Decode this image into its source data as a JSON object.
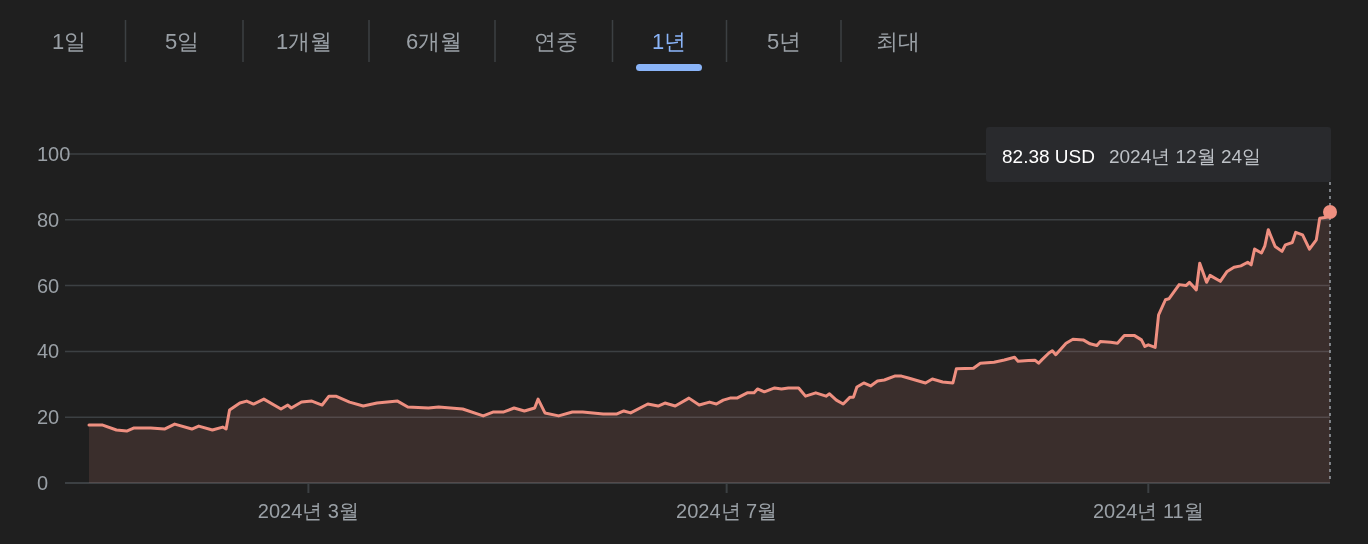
{
  "chart_data": {
    "type": "area",
    "color": "#ee8f80",
    "grid": "y",
    "annotations": [
      "1일",
      "5일",
      "1개월",
      "6개월",
      "연중",
      "1년",
      "5년",
      "최대",
      "82.38 USD",
      "2024년 12월 24일"
    ],
    "xlim": [
      "2023-12-21",
      "2024-12-24"
    ],
    "xticks": [
      {
        "value": "2024-03-01",
        "label": "2024년 3월"
      },
      {
        "value": "2024-07-01",
        "label": "2024년 7월"
      },
      {
        "value": "2024-11-01",
        "label": "2024년 11월"
      }
    ],
    "ylim": [
      0,
      100
    ],
    "yticks": [
      0,
      20,
      40,
      60,
      80,
      100
    ],
    "x": [
      "2023-12-28",
      "2024-01-01",
      "2024-01-05",
      "2024-01-08",
      "2024-01-10",
      "2024-01-15",
      "2024-01-19",
      "2024-01-22",
      "2024-01-27",
      "2024-01-29",
      "2024-02-02",
      "2024-02-05",
      "2024-02-06",
      "2024-02-07",
      "2024-02-10",
      "2024-02-12",
      "2024-02-14",
      "2024-02-17",
      "2024-02-22",
      "2024-02-24",
      "2024-02-25",
      "2024-02-28",
      "2024-03-02",
      "2024-03-05",
      "2024-03-07",
      "2024-03-09",
      "2024-03-13",
      "2024-03-17",
      "2024-03-21",
      "2024-03-27",
      "2024-03-30",
      "2024-04-05",
      "2024-04-08",
      "2024-04-15",
      "2024-04-21",
      "2024-04-24",
      "2024-04-27",
      "2024-04-30",
      "2024-05-03",
      "2024-05-06",
      "2024-05-07",
      "2024-05-09",
      "2024-05-13",
      "2024-05-17",
      "2024-05-20",
      "2024-05-26",
      "2024-05-30",
      "2024-06-01",
      "2024-06-03",
      "2024-06-08",
      "2024-06-11",
      "2024-06-13",
      "2024-06-16",
      "2024-06-20",
      "2024-06-23",
      "2024-06-26",
      "2024-06-28",
      "2024-06-30",
      "2024-07-02",
      "2024-07-04",
      "2024-07-07",
      "2024-07-09",
      "2024-07-10",
      "2024-07-12",
      "2024-07-15",
      "2024-07-17",
      "2024-07-19",
      "2024-07-22",
      "2024-07-24",
      "2024-07-27",
      "2024-07-30",
      "2024-07-31",
      "2024-08-02",
      "2024-08-04",
      "2024-08-06",
      "2024-08-07",
      "2024-08-08",
      "2024-08-10",
      "2024-08-12",
      "2024-08-14",
      "2024-08-16",
      "2024-08-19",
      "2024-08-21",
      "2024-08-23",
      "2024-08-26",
      "2024-08-28",
      "2024-08-30",
      "2024-09-02",
      "2024-09-05",
      "2024-09-06",
      "2024-09-11",
      "2024-09-13",
      "2024-09-17",
      "2024-09-20",
      "2024-09-23",
      "2024-09-24",
      "2024-09-27",
      "2024-09-29",
      "2024-09-30",
      "2024-10-01",
      "2024-10-03",
      "2024-10-04",
      "2024-10-05",
      "2024-10-08",
      "2024-10-10",
      "2024-10-13",
      "2024-10-15",
      "2024-10-17",
      "2024-10-18",
      "2024-10-21",
      "2024-10-23",
      "2024-10-25",
      "2024-10-28",
      "2024-10-30",
      "2024-10-31",
      "2024-11-01",
      "2024-11-03",
      "2024-11-04",
      "2024-11-06",
      "2024-11-07",
      "2024-11-10",
      "2024-11-12",
      "2024-11-13",
      "2024-11-15",
      "2024-11-16",
      "2024-11-18",
      "2024-11-19",
      "2024-11-22",
      "2024-11-24",
      "2024-11-26",
      "2024-11-28",
      "2024-11-30",
      "2024-12-01",
      "2024-12-02",
      "2024-12-04",
      "2024-12-05",
      "2024-12-06",
      "2024-12-08",
      "2024-12-10",
      "2024-12-11",
      "2024-12-13",
      "2024-12-14",
      "2024-12-16",
      "2024-12-18",
      "2024-12-20",
      "2024-12-21",
      "2024-12-23",
      "2024-12-24"
    ],
    "values": [
      17.6,
      17.6,
      16.1,
      15.8,
      16.7,
      16.7,
      16.4,
      17.9,
      16.4,
      17.3,
      16.1,
      17.0,
      16.4,
      22.2,
      24.3,
      24.9,
      24.0,
      25.5,
      22.5,
      23.7,
      22.8,
      24.6,
      24.9,
      23.7,
      26.4,
      26.4,
      24.6,
      23.4,
      24.3,
      24.9,
      23.1,
      22.8,
      23.1,
      22.5,
      20.4,
      21.6,
      21.6,
      22.8,
      21.9,
      22.8,
      25.5,
      21.3,
      20.4,
      21.6,
      21.6,
      21.0,
      21.0,
      21.9,
      21.3,
      24.0,
      23.4,
      24.3,
      23.4,
      25.8,
      23.7,
      24.6,
      24.0,
      25.2,
      25.8,
      25.8,
      27.4,
      27.4,
      28.6,
      27.7,
      28.9,
      28.6,
      28.9,
      28.9,
      26.4,
      27.4,
      26.4,
      27.1,
      25.2,
      24.0,
      26.1,
      26.1,
      29.2,
      30.4,
      29.5,
      31.0,
      31.3,
      32.5,
      32.5,
      31.9,
      31.0,
      30.4,
      31.6,
      30.7,
      30.4,
      34.7,
      34.9,
      36.4,
      36.7,
      37.4,
      38.2,
      37.0,
      37.2,
      37.3,
      36.4,
      37.5,
      39.5,
      40.2,
      39.0,
      42.5,
      43.7,
      43.5,
      42.3,
      41.8,
      43.0,
      42.8,
      42.5,
      44.8,
      44.8,
      43.5,
      41.5,
      42.0,
      41.2,
      51.1,
      55.7,
      56.0,
      60.3,
      60.0,
      61.0,
      58.7,
      66.8,
      61.0,
      63.1,
      61.3,
      64.3,
      65.6,
      66.0,
      67.1,
      66.3,
      71.1,
      69.9,
      72.1,
      77.0,
      71.9,
      70.4,
      72.4,
      73.1,
      76.2,
      75.4,
      71.1,
      73.9,
      80.5,
      80.8,
      82.38
    ]
  }
}
